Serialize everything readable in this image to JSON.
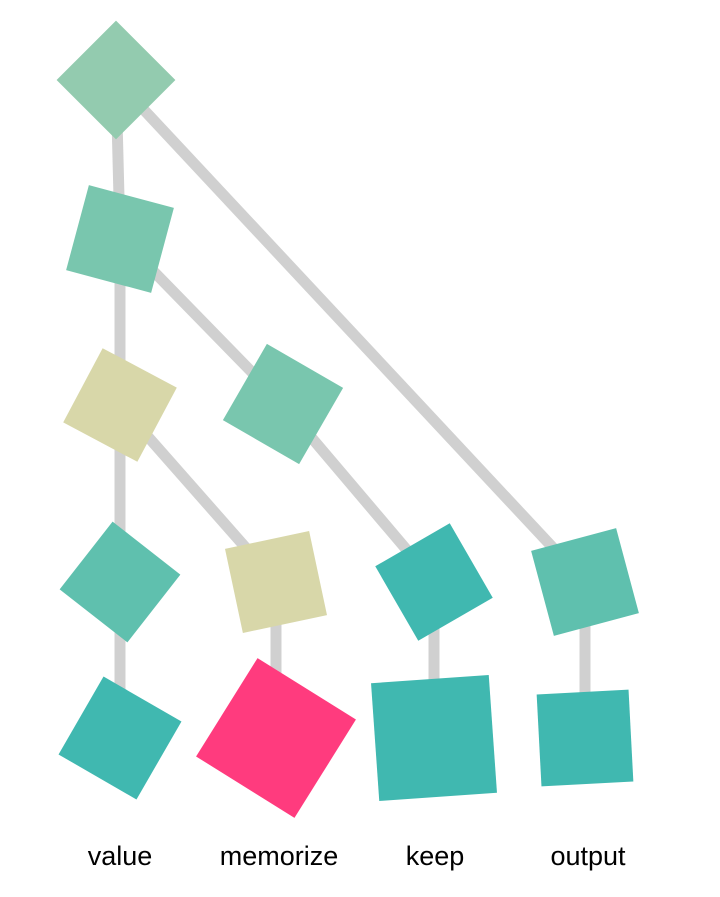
{
  "tree": {
    "node_colors": {
      "mint_light": "#93cbaf",
      "mint": "#79c6ae",
      "khaki": "#d8d7a9",
      "teal_mid": "#5fc0ae",
      "teal": "#40b8b0",
      "pink": "#ff3b7e"
    },
    "edge_color": "#d0d0d0",
    "leaves": [
      {
        "label": "value"
      },
      {
        "label": "memorize"
      },
      {
        "label": "keep"
      },
      {
        "label": "output"
      }
    ]
  }
}
